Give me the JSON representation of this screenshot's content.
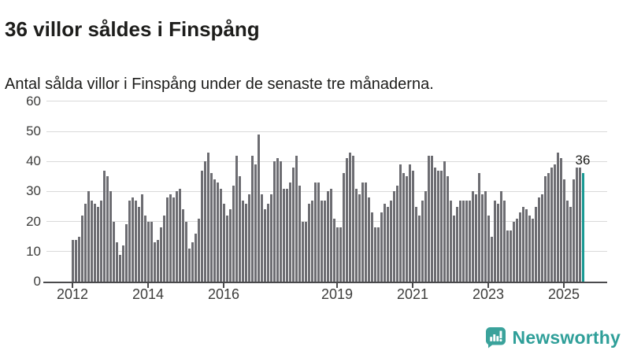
{
  "header": {
    "title": "36 villor såldes i Finspång",
    "subtitle": "Antal sålda villor i Finspång under de senaste tre månaderna."
  },
  "chart_data": {
    "type": "bar",
    "title": "36 villor såldes i Finspång",
    "subtitle": "Antal sålda villor i Finspång under de senaste tre månaderna.",
    "xlabel": "",
    "ylabel": "",
    "ylim": [
      0,
      60
    ],
    "yticks": [
      0,
      10,
      20,
      30,
      40,
      50,
      60
    ],
    "xticks": [
      "2012",
      "2014",
      "2016",
      "2019",
      "2021",
      "2023",
      "2025"
    ],
    "x_start": "2012-01",
    "x_interval": "monthly",
    "grid": true,
    "legend_position": "none",
    "bar_color": "#6D6D72",
    "highlight_color": "#1A9A94",
    "highlight_last": true,
    "highlight_value": 36,
    "highlight_label": "36",
    "values": [
      14,
      14,
      15,
      22,
      26,
      30,
      27,
      26,
      25,
      27,
      37,
      35,
      30,
      20,
      13,
      9,
      12,
      19,
      27,
      28,
      27,
      25,
      29,
      22,
      20,
      20,
      13,
      14,
      18,
      22,
      28,
      29,
      28,
      30,
      31,
      24,
      20,
      11,
      13,
      16,
      21,
      37,
      40,
      43,
      36,
      34,
      33,
      31,
      26,
      22,
      24,
      32,
      42,
      35,
      27,
      26,
      29,
      42,
      39,
      49,
      29,
      24,
      26,
      29,
      40,
      41,
      40,
      31,
      31,
      33,
      38,
      42,
      32,
      20,
      20,
      26,
      27,
      33,
      33,
      27,
      27,
      30,
      31,
      21,
      18,
      18,
      36,
      41,
      43,
      42,
      31,
      29,
      33,
      33,
      28,
      23,
      18,
      18,
      23,
      26,
      25,
      27,
      30,
      32,
      39,
      36,
      35,
      39,
      37,
      25,
      22,
      27,
      30,
      42,
      42,
      38,
      37,
      37,
      40,
      35,
      27,
      22,
      25,
      27,
      27,
      27,
      27,
      30,
      29,
      36,
      29,
      30,
      22,
      15,
      27,
      26,
      30,
      27,
      17,
      17,
      20,
      21,
      23,
      25,
      24,
      22,
      21,
      25,
      28,
      29,
      35,
      36,
      38,
      39,
      43,
      41,
      34,
      27,
      25,
      34,
      38,
      38,
      36
    ]
  },
  "footer": {
    "brand": "Newsworthy",
    "brand_color": "#2F9F99",
    "logo_color": "#3AA29B"
  }
}
